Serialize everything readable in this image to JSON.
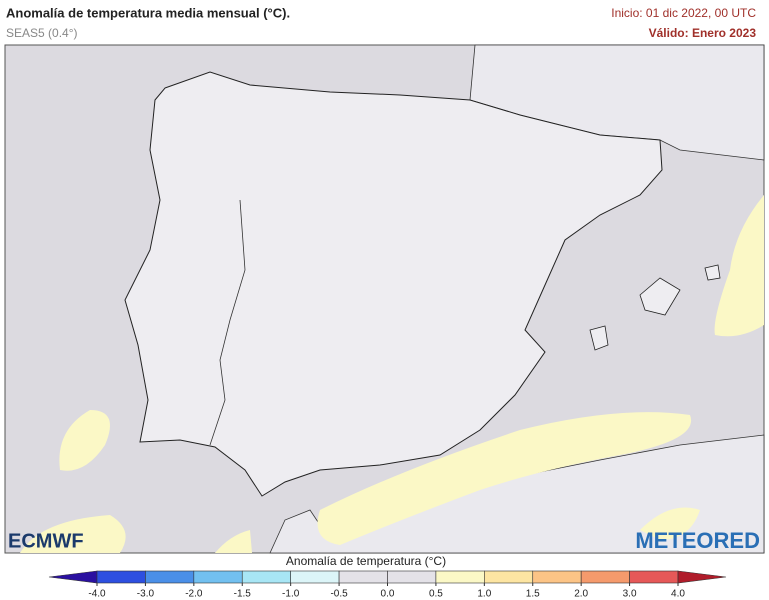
{
  "header": {
    "title": "Anomalía de temperatura media mensual (°C).",
    "subtitle": "SEAS5 (0.4°)",
    "init": "Inicio: 01 dic 2022, 00 UTC",
    "valid": "Válido: Enero 2023"
  },
  "logos": {
    "left": "ECMWF",
    "right": "METEORED"
  },
  "colorbar": {
    "title": "Anomalía de temperatura (°C)",
    "ticks": [
      {
        "value": -4,
        "label": "-4.0"
      },
      {
        "value": -3,
        "label": "-3.0"
      },
      {
        "value": -2,
        "label": "-2.0"
      },
      {
        "value": -1.5,
        "label": "-1.5"
      },
      {
        "value": -1,
        "label": "-1.0"
      },
      {
        "value": -0.5,
        "label": "-0.5"
      },
      {
        "value": 0,
        "label": "0.0"
      },
      {
        "value": 0.5,
        "label": "0.5"
      },
      {
        "value": 1,
        "label": "1.0"
      },
      {
        "value": 1.5,
        "label": "1.5"
      },
      {
        "value": 2,
        "label": "2.0"
      },
      {
        "value": 3,
        "label": "3.0"
      },
      {
        "value": 4,
        "label": "4.0"
      }
    ],
    "colors": [
      "#2a10a0",
      "#2d4fe0",
      "#4a8fe8",
      "#72c0f0",
      "#a8e6f5",
      "#dcf5f8",
      "#e4e2e8",
      "#e4e2e8",
      "#fbf8c6",
      "#fde5a2",
      "#fcc486",
      "#f59a6c",
      "#e65858",
      "#b01c2a"
    ]
  }
}
